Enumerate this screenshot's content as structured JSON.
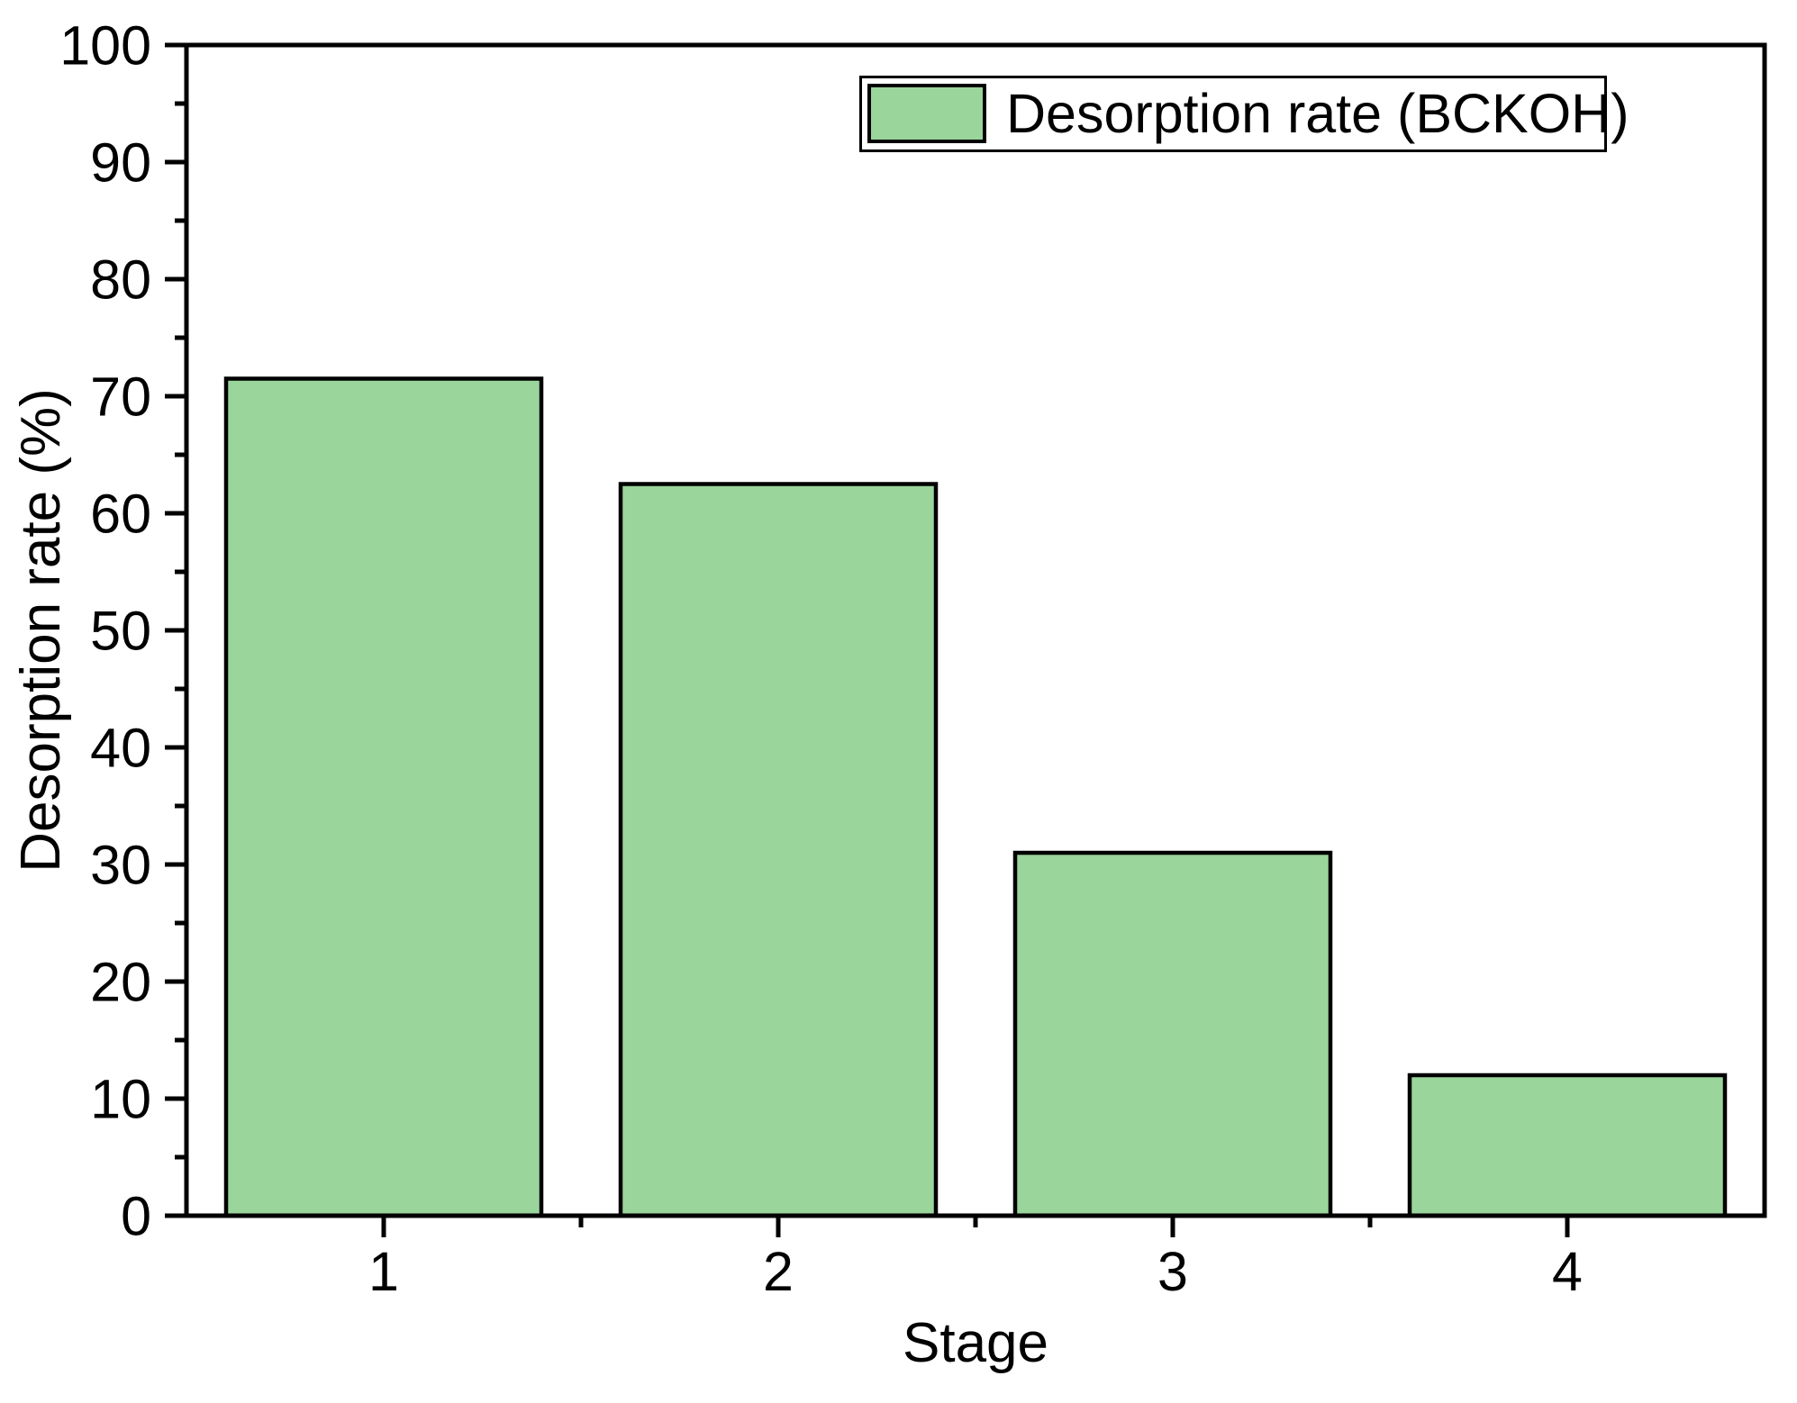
{
  "figure": {
    "background_color": "#ffffff",
    "legend": {
      "label": "Desorption rate (BCKOH)",
      "position": "top-right"
    },
    "colors": {
      "bar_fill": "#9ad59b",
      "bar_border": "#000000",
      "axis": "#000000",
      "text": "#000000",
      "legend_border": "#000000",
      "legend_background": "#ffffff"
    }
  },
  "chart_data": {
    "type": "bar",
    "title": "",
    "xlabel": "Stage",
    "ylabel": "Desorption rate (%)",
    "categories": [
      "1",
      "2",
      "3",
      "4"
    ],
    "series": [
      {
        "name": "Desorption rate (BCKOH)",
        "values": [
          71.5,
          62.5,
          31,
          12
        ]
      }
    ],
    "ylim": [
      0,
      100
    ],
    "y_major_step": 10,
    "y_minor_step": 5,
    "y_tick_labels": [
      "0",
      "10",
      "20",
      "30",
      "40",
      "50",
      "60",
      "70",
      "80",
      "90",
      "100"
    ],
    "x_tick_labels": [
      "1",
      "2",
      "3",
      "4"
    ],
    "grid": false,
    "legend_position": "top-right",
    "frame": "full-box"
  }
}
